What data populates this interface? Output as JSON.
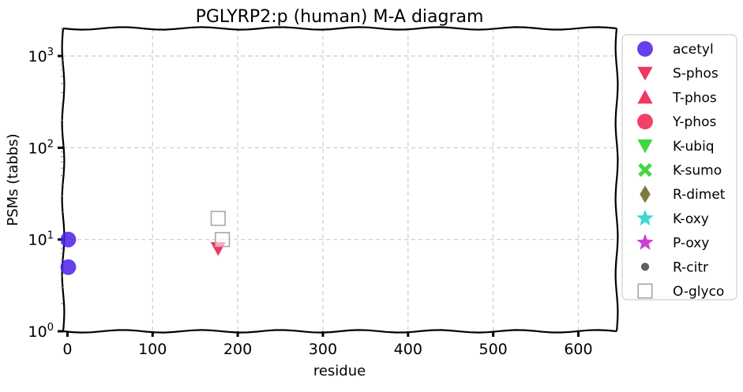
{
  "chart_data": {
    "type": "scatter",
    "title": "PGLYRP2:p (human) M-A diagram",
    "xlabel": "residue",
    "ylabel": "PSMs (tabbs)",
    "xlim": [
      -5,
      645
    ],
    "ylim": [
      1,
      2000
    ],
    "y_scale": "log",
    "x_ticks": [
      0,
      100,
      200,
      300,
      400,
      500,
      600
    ],
    "x_tick_labels": [
      "0",
      "100",
      "200",
      "300",
      "400",
      "500",
      "600"
    ],
    "y_ticks": [
      1,
      10,
      100,
      1000
    ],
    "y_tick_labels": [
      {
        "base": "10",
        "exp": "0"
      },
      {
        "base": "10",
        "exp": "1"
      },
      {
        "base": "10",
        "exp": "2"
      },
      {
        "base": "10",
        "exp": "3"
      }
    ],
    "grid": true,
    "legend_placement": "outside-right",
    "series": [
      {
        "name": "acetyl",
        "marker": "circle",
        "color": "#4a1ee8",
        "points": [
          {
            "x": 1,
            "y": 10
          },
          {
            "x": 1,
            "y": 5
          }
        ]
      },
      {
        "name": "S-phos",
        "marker": "triangle-down",
        "color": "#f0204f",
        "points": [
          {
            "x": 177,
            "y": 8
          }
        ]
      },
      {
        "name": "T-phos",
        "marker": "triangle-up",
        "color": "#f0204f",
        "points": []
      },
      {
        "name": "Y-phos",
        "marker": "circle",
        "color": "#f0204f",
        "points": []
      },
      {
        "name": "K-ubiq",
        "marker": "triangle-down",
        "color": "#2ed12e",
        "points": []
      },
      {
        "name": "K-sumo",
        "marker": "x",
        "color": "#2ed12e",
        "points": []
      },
      {
        "name": "R-dimet",
        "marker": "diamond",
        "color": "#6b6b2e",
        "points": []
      },
      {
        "name": "K-oxy",
        "marker": "star",
        "color": "#2ed1d1",
        "points": []
      },
      {
        "name": "P-oxy",
        "marker": "star",
        "color": "#c42ed1",
        "points": []
      },
      {
        "name": "R-citr",
        "marker": "dot",
        "color": "#606060",
        "points": []
      },
      {
        "name": "O-glyco",
        "marker": "square-open",
        "color": "#a8a8a8",
        "points": [
          {
            "x": 177,
            "y": 17
          },
          {
            "x": 182,
            "y": 10
          }
        ]
      }
    ]
  }
}
